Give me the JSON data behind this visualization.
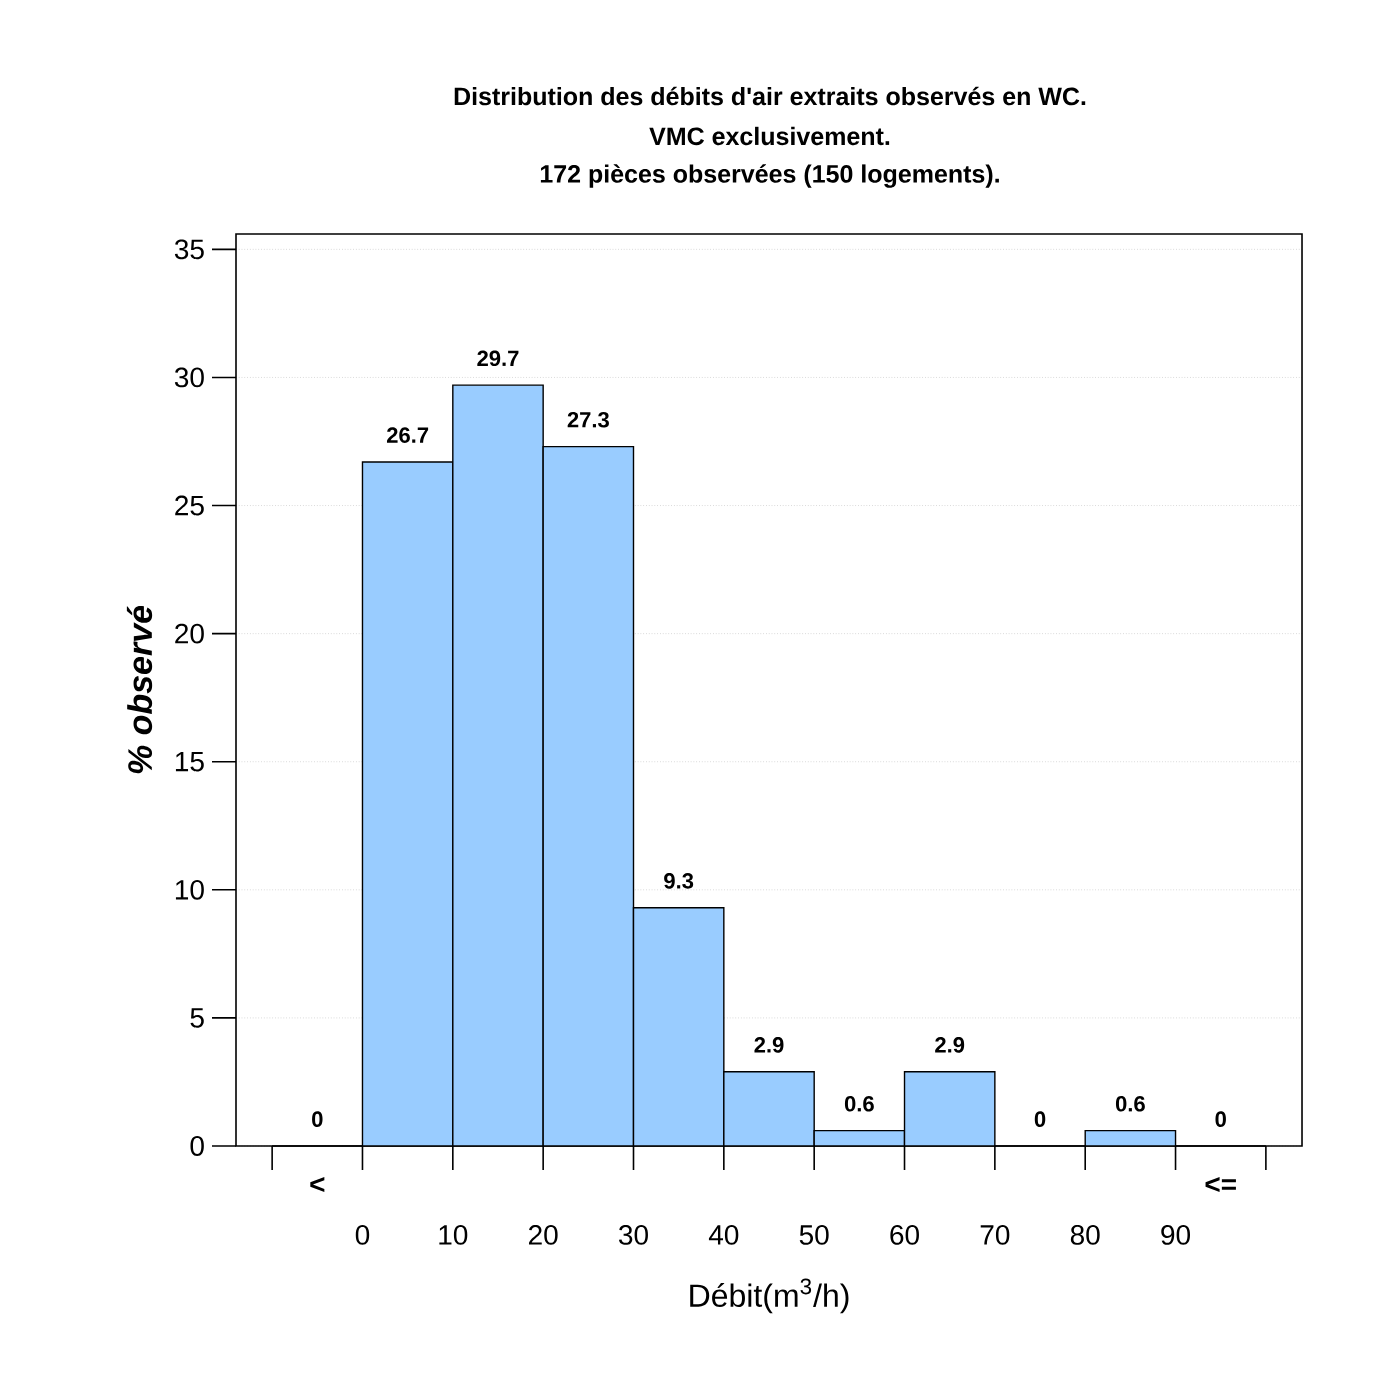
{
  "chart_data": {
    "type": "histogram",
    "title": "Distribution des débits d'air extraits observés en WC.",
    "subtitle": "VMC exclusivement.",
    "annotations": [
      "172 pièces observées (150 logements).",
      {
        "text": "<",
        "x": -5,
        "y": 0
      },
      {
        "text": "<=",
        "x": 95,
        "y": 0
      }
    ],
    "xlabel": "Débit(m$^{3}$/h)",
    "ylabel": "% observé",
    "bins": [
      -10,
      0,
      10,
      20,
      30,
      40,
      50,
      60,
      70,
      80,
      90,
      100
    ],
    "values": [
      0,
      26.7,
      29.7,
      27.3,
      9.3,
      2.9,
      0.6,
      2.9,
      0,
      0.6,
      0
    ],
    "color": "#99ccff",
    "data_labels": true,
    "xlim": [
      -14,
      104
    ],
    "ylim": [
      0,
      35.6
    ],
    "xticks": [
      {
        "value": -10,
        "label": null
      },
      0,
      10,
      20,
      30,
      40,
      50,
      60,
      70,
      80,
      90,
      {
        "value": 100,
        "label": null
      }
    ],
    "yticks": [
      0,
      5,
      10,
      15,
      20,
      25,
      30,
      35
    ],
    "grid": "y"
  }
}
